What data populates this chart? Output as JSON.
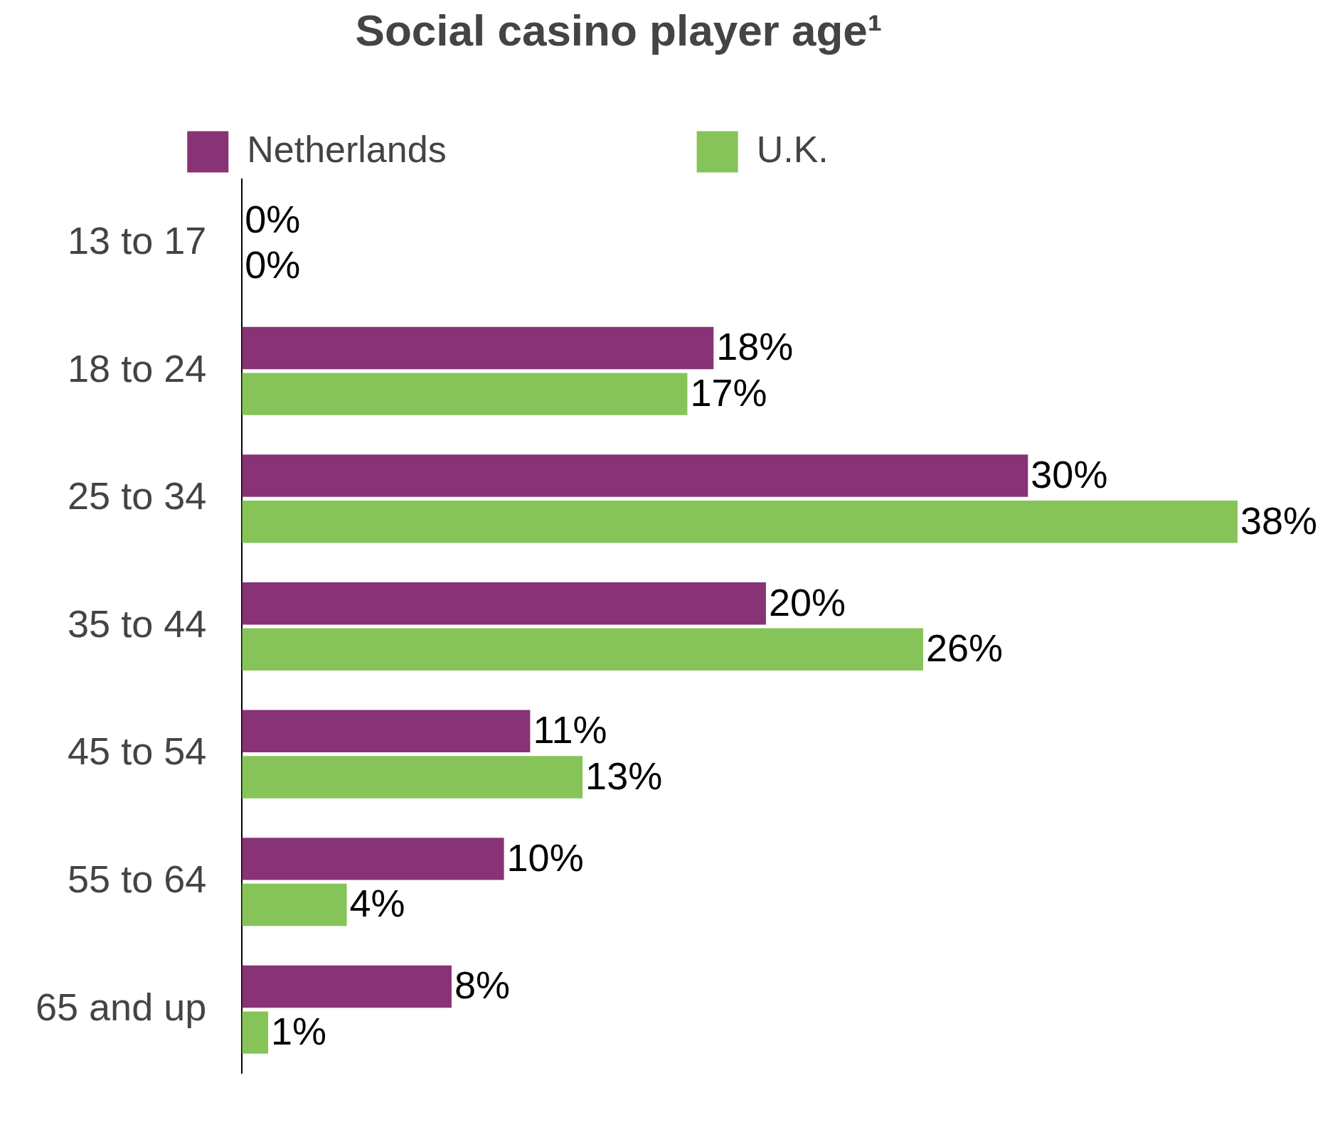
{
  "chart_data": {
    "type": "bar",
    "orientation": "horizontal",
    "title": "Social casino player age¹",
    "categories": [
      "13 to 17",
      "18 to 24",
      "25 to 34",
      "35 to 44",
      "45 to 54",
      "55 to 64",
      "65 and up"
    ],
    "series": [
      {
        "name": "Netherlands",
        "color": "#873375",
        "values": [
          0,
          18,
          30,
          20,
          11,
          10,
          8
        ],
        "value_labels": [
          "0%",
          "18%",
          "30%",
          "20%",
          "11%",
          "10%",
          "8%"
        ]
      },
      {
        "name": "U.K.",
        "color": "#86c45a",
        "values": [
          0,
          17,
          38,
          26,
          13,
          4,
          1
        ],
        "value_labels": [
          "0%",
          "17%",
          "38%",
          "26%",
          "13%",
          "4%",
          "1%"
        ]
      }
    ],
    "legend": "top",
    "grid": false
  }
}
